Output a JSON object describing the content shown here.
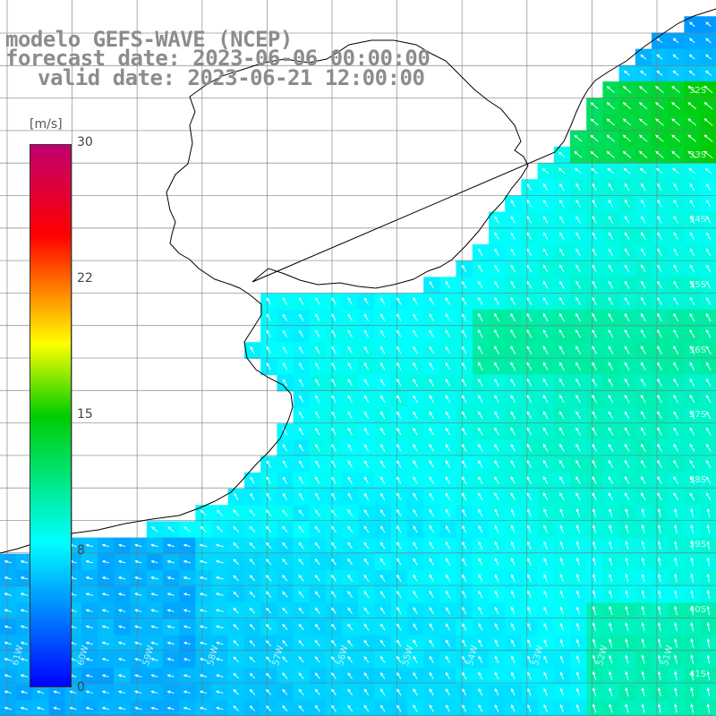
{
  "title": {
    "line1": "modelo GEFS-WAVE (NCEP)",
    "line2": "forecast date: 2023-06-06 00:00:00",
    "line3": "valid date: 2023-06-21 12:00:00"
  },
  "colorbar": {
    "unit": "[m/s]",
    "min": 0,
    "max": 30,
    "ticks": [
      "30",
      "22",
      "15",
      "8",
      "0"
    ],
    "tick_values": [
      30,
      22.5,
      15,
      7.5,
      0
    ],
    "stops": [
      {
        "v": 0,
        "c": "#0000ff"
      },
      {
        "v": 8,
        "c": "#00ffff"
      },
      {
        "v": 15,
        "c": "#00cc00"
      },
      {
        "v": 19,
        "c": "#ffff00"
      },
      {
        "v": 22,
        "c": "#ff8000"
      },
      {
        "v": 25,
        "c": "#ff0000"
      },
      {
        "v": 30,
        "c": "#c0006f"
      }
    ]
  },
  "lat_labels": [
    "32S",
    "33S",
    "34S",
    "35S",
    "36S",
    "37S",
    "38S",
    "39S",
    "40S",
    "41S"
  ],
  "lon_labels": [
    "61W",
    "60W",
    "59W",
    "58W",
    "57W",
    "56W",
    "55W",
    "54W",
    "53W",
    "52W",
    "51W"
  ],
  "colors": {
    "land": "#ffffff",
    "coast": "#000000",
    "grid": "#888888",
    "title": "#8c8c8c",
    "arrow": "#ffffff"
  },
  "map_region": {
    "lon_min": -62.0,
    "lon_max": -50.5,
    "lat_min": -41.5,
    "lat_max": -30.5
  }
}
